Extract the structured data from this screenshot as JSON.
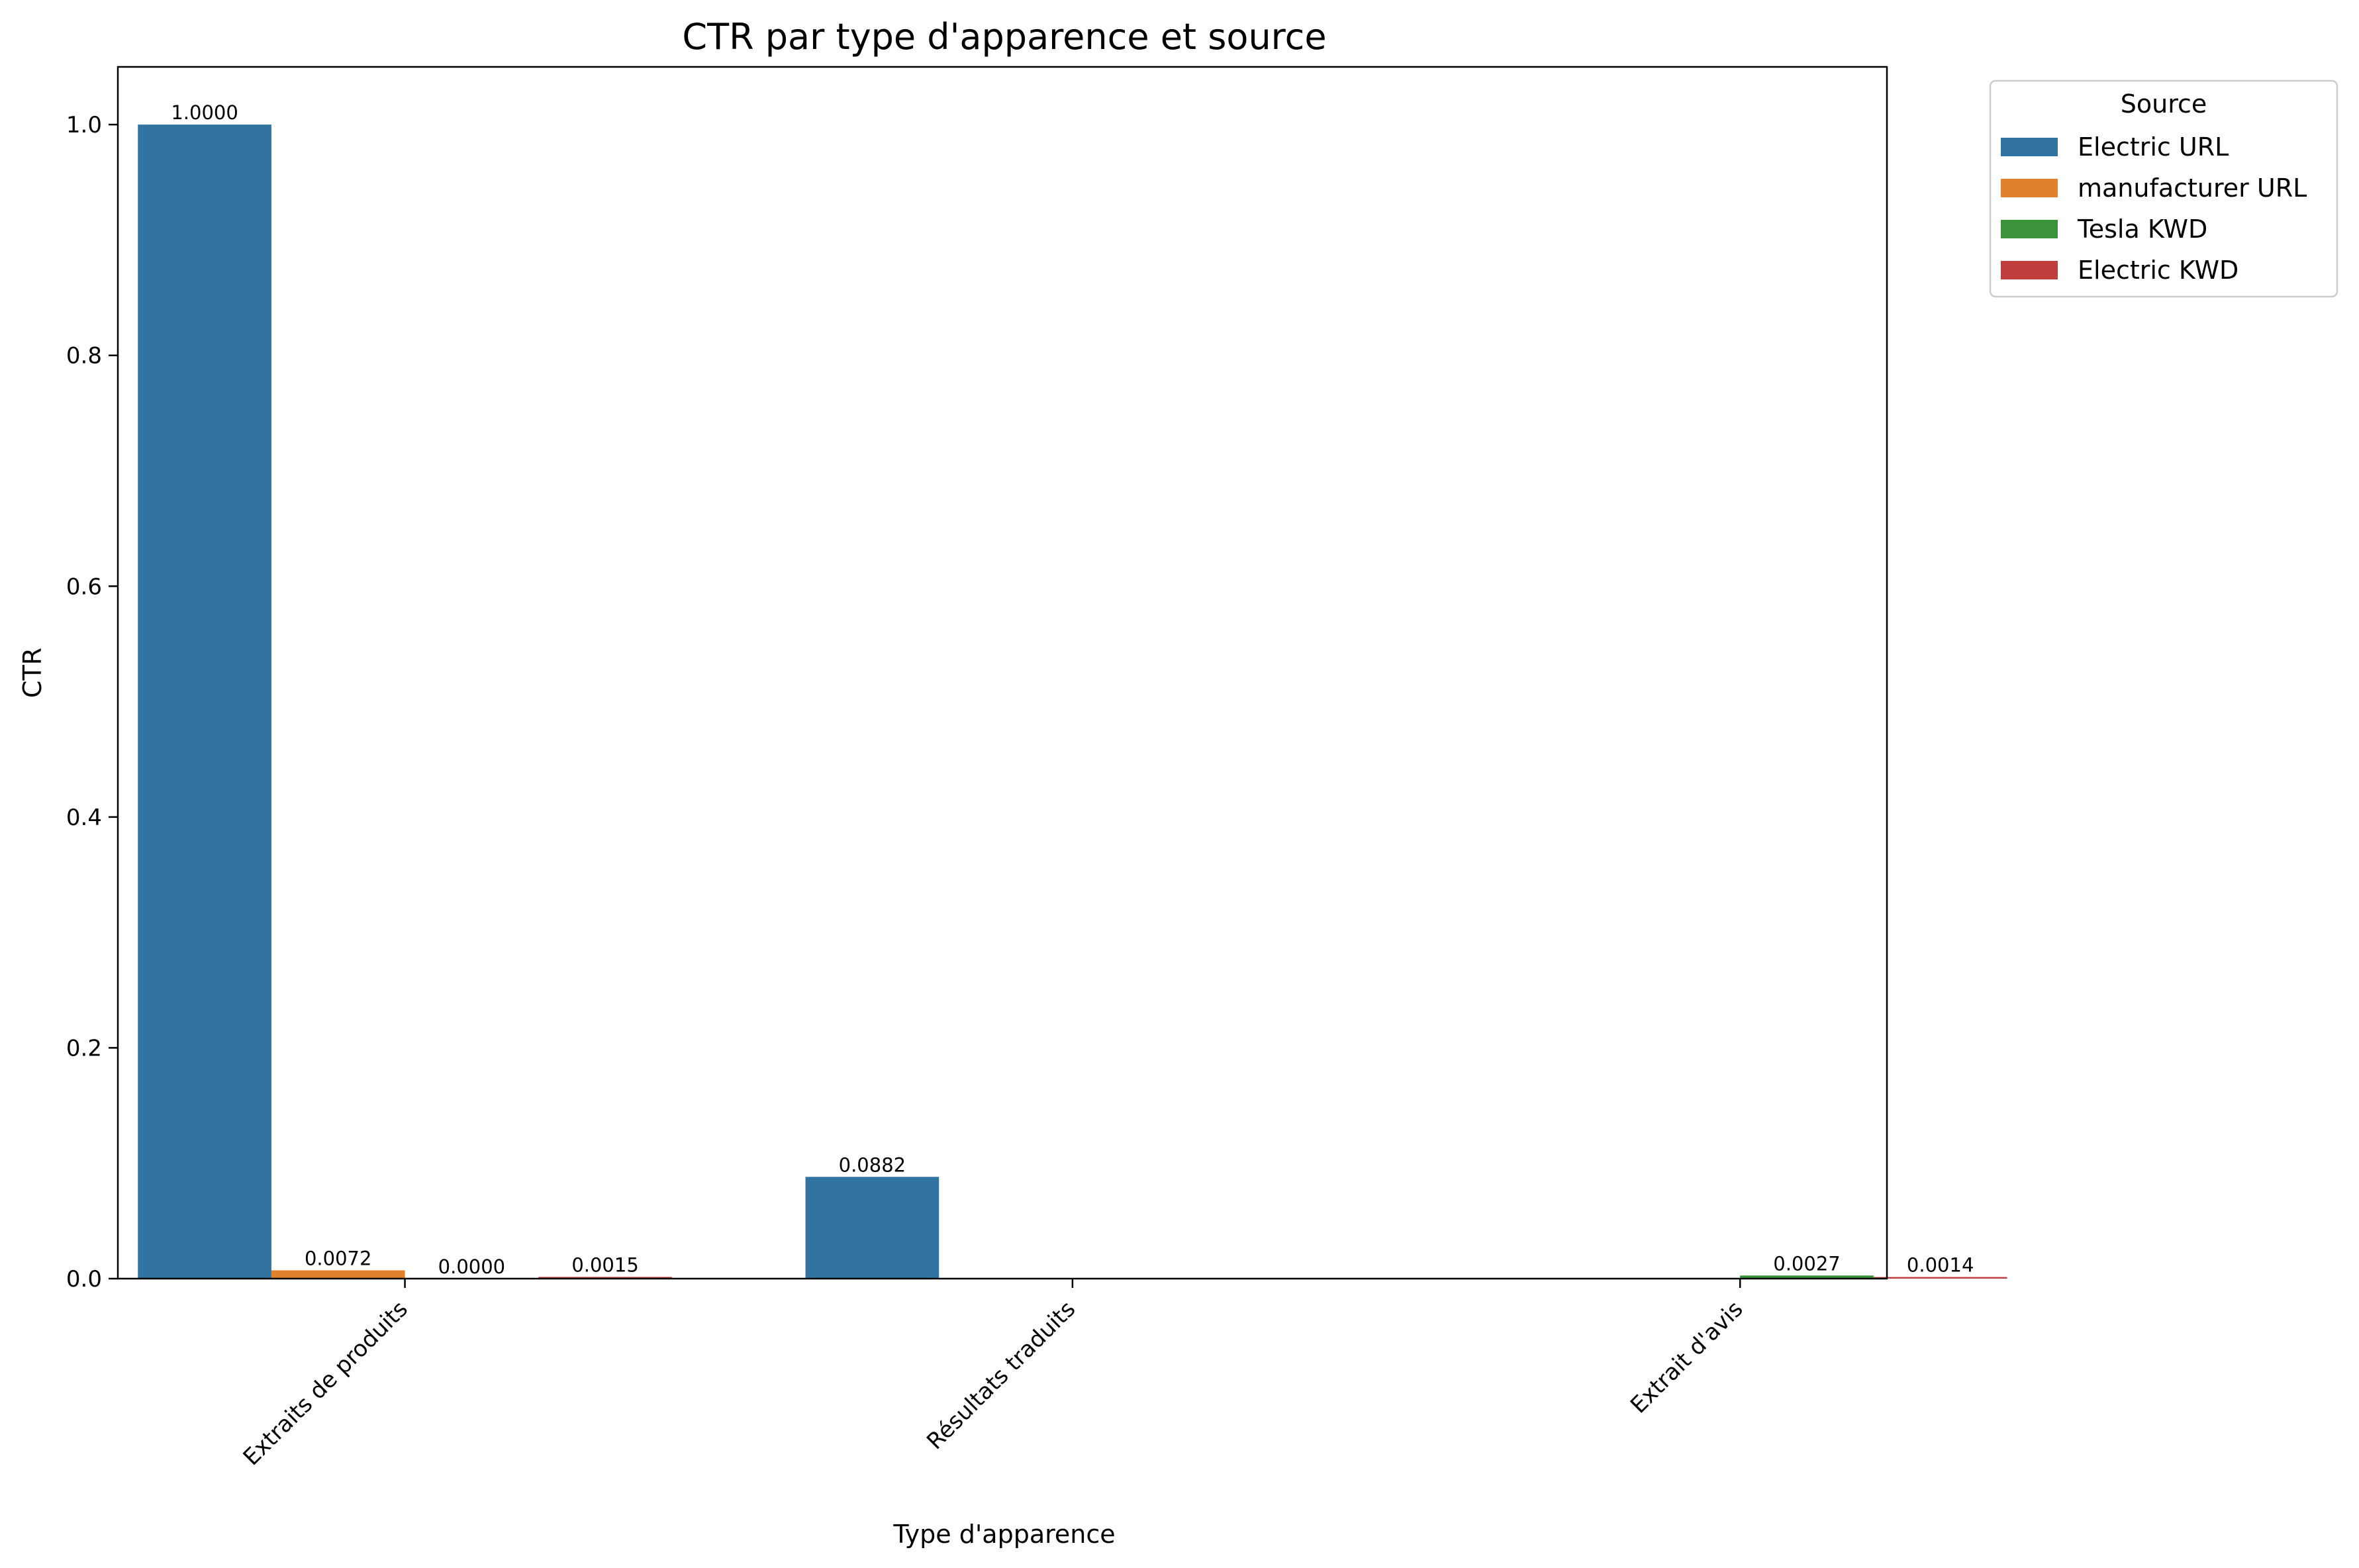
{
  "chart_data": {
    "type": "bar",
    "title": "CTR par type d'apparence et source",
    "xlabel": "Type d'apparence",
    "ylabel": "CTR",
    "ylim": [
      0,
      1.05
    ],
    "yticks": [
      "0.0",
      "0.2",
      "0.4",
      "0.6",
      "0.8",
      "1.0"
    ],
    "categories": [
      "Extraits de produits",
      "Résultats traduits",
      "Extrait d'avis"
    ],
    "legend_title": "Source",
    "legend_position": "outside-top-right",
    "grid": false,
    "series": [
      {
        "name": "Electric URL",
        "color": "#3274a1",
        "values": [
          1.0,
          0.0882,
          null
        ],
        "labels": [
          "1.0000",
          "0.0882",
          ""
        ]
      },
      {
        "name": "manufacturer URL",
        "color": "#e1812c",
        "values": [
          0.0072,
          null,
          null
        ],
        "labels": [
          "0.0072",
          "",
          ""
        ]
      },
      {
        "name": "Tesla KWD",
        "color": "#3a923a",
        "values": [
          0.0,
          null,
          0.0027
        ],
        "labels": [
          "0.0000",
          "",
          "0.0027"
        ]
      },
      {
        "name": "Electric KWD",
        "color": "#c03d3e",
        "values": [
          0.0015,
          null,
          0.0014
        ],
        "labels": [
          "0.0015",
          "",
          "0.0014"
        ]
      }
    ]
  }
}
